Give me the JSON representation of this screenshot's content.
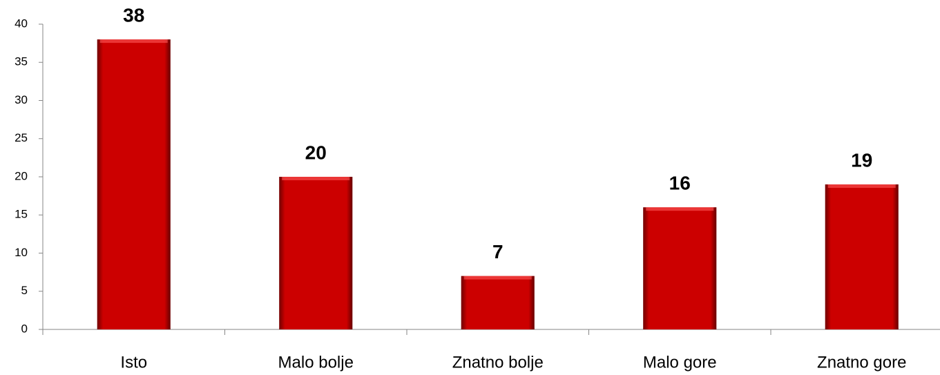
{
  "chart_data": {
    "type": "bar",
    "categories": [
      "Isto",
      "Malo bolje",
      "Znatno bolje",
      "Malo gore",
      "Znatno gore"
    ],
    "values": [
      38,
      20,
      7,
      16,
      19
    ],
    "color": "#cc0000",
    "ylim": [
      0,
      40
    ],
    "yticks": [
      0,
      5,
      10,
      15,
      20,
      25,
      30,
      35,
      40
    ],
    "grid": false
  }
}
